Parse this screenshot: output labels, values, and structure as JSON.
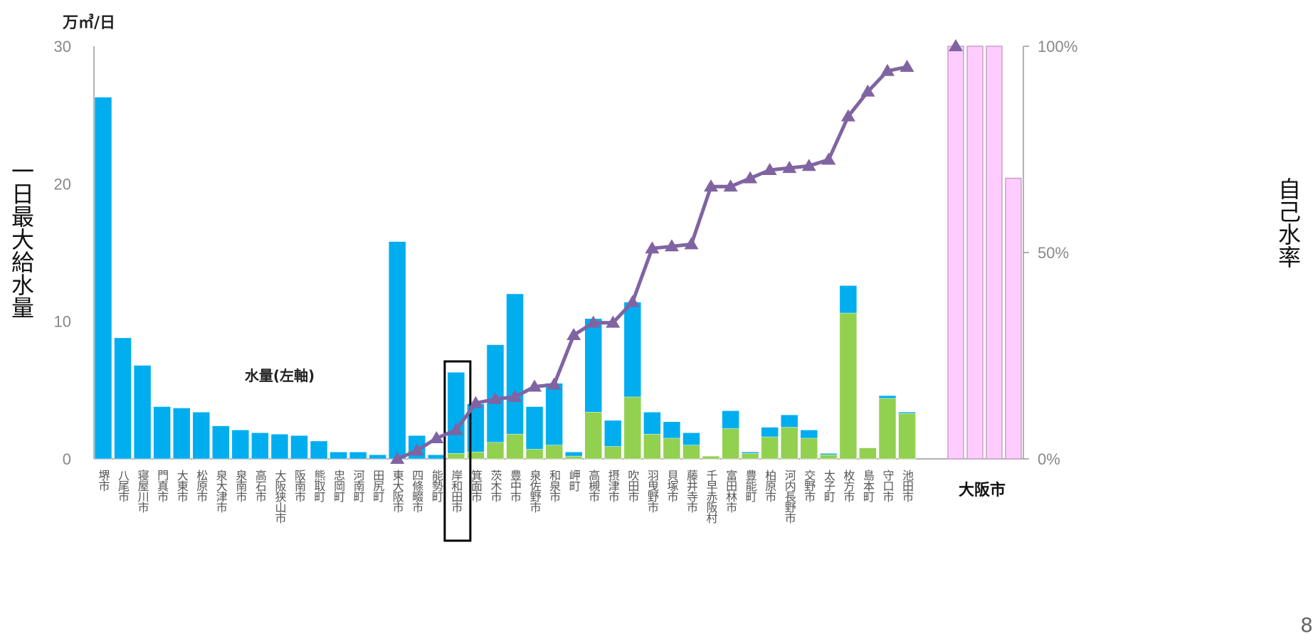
{
  "chart_data": {
    "type": "bar",
    "unit_label": "万㎥/日",
    "ylabel_left": "一日最大給水量",
    "ylabel_right": "自己水率",
    "ylim": [
      0,
      30
    ],
    "y_ticks": [
      "0",
      "10",
      "20",
      "30"
    ],
    "y2_ticks": [
      "0%",
      "50%",
      "100%"
    ],
    "annotation": "水量(左軸)",
    "osaka_label": "大阪市",
    "highlighted_category": "岸和田市",
    "categories": [
      "堺市",
      "八尾市",
      "寝屋川市",
      "門真市",
      "大東市",
      "松原市",
      "泉大津市",
      "泉南市",
      "高石市",
      "大阪狭山市",
      "阪南市",
      "熊取町",
      "忠岡町",
      "河南町",
      "田尻町",
      "東大阪市",
      "四條畷市",
      "能勢町",
      "岸和田市",
      "箕面市",
      "茨木市",
      "豊中市",
      "泉佐野市",
      "和泉市",
      "岬町",
      "高槻市",
      "摂津市",
      "吹田市",
      "羽曳野市",
      "貝塚市",
      "藤井寺市",
      "千早赤阪村",
      "富田林市",
      "豊能町",
      "柏原市",
      "河内長野市",
      "交野市",
      "太子町",
      "枚方市",
      "島本町",
      "守口市",
      "池田市"
    ],
    "series": [
      {
        "values": [
          26.3,
          8.8,
          6.8,
          3.8,
          3.7,
          3.4,
          2.4,
          2.1,
          1.9,
          1.8,
          1.7,
          1.3,
          0.5,
          0.5,
          0.3,
          15.8,
          1.7,
          0.3,
          6.3,
          4.0,
          8.3,
          12.0,
          3.8,
          5.5,
          0.5,
          10.2,
          2.8,
          11.4,
          3.4,
          2.7,
          1.9,
          0.2,
          3.5,
          0.5,
          2.3,
          3.2,
          2.1,
          0.4,
          12.6,
          0.8,
          4.6,
          3.4
        ]
      },
      {
        "values": [
          0,
          0,
          0,
          0,
          0,
          0,
          0,
          0,
          0,
          0,
          0,
          0,
          0,
          0,
          0,
          0,
          0,
          0,
          0.4,
          0.5,
          1.2,
          1.8,
          0.7,
          1.0,
          0.2,
          3.4,
          0.9,
          4.5,
          1.8,
          1.5,
          1.0,
          0.2,
          2.2,
          0.4,
          1.6,
          2.3,
          1.5,
          0.3,
          10.6,
          0.8,
          4.4,
          3.3
        ]
      },
      {
        "values": [
          null,
          null,
          null,
          null,
          null,
          null,
          null,
          null,
          null,
          null,
          null,
          null,
          null,
          null,
          null,
          0,
          2,
          5,
          7,
          13.5,
          14.5,
          15,
          17.5,
          18,
          30,
          33,
          33,
          38,
          51,
          51.5,
          52,
          66,
          66,
          68,
          70,
          70.5,
          71,
          72.5,
          83,
          89,
          94,
          95
        ]
      }
    ],
    "osaka_values": [
      100,
      100,
      100,
      68
    ],
    "colors": {
      "supply": "#00aeef",
      "self": "#92d050",
      "line": "#8064a2",
      "osaka_fill": "#ffccff",
      "osaka_stroke": "#c8a0c8"
    }
  },
  "page_number": "8"
}
